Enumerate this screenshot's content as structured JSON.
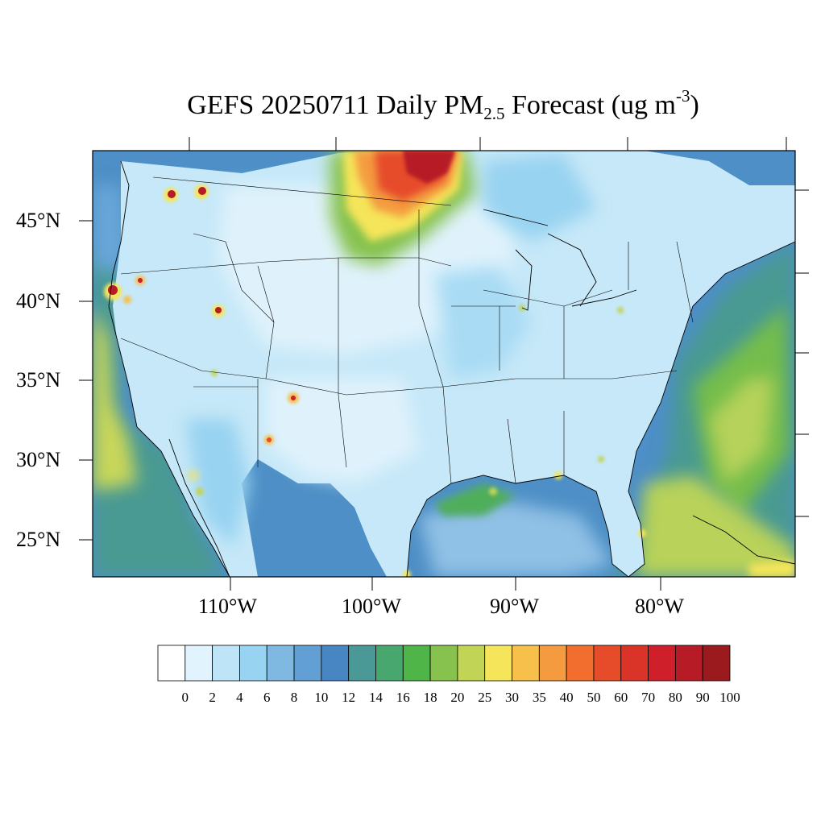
{
  "title": {
    "prefix": "GEFS 20250711 Daily PM",
    "subscript": "2.5",
    "middle": " Forecast (ug m",
    "superscript": "-3",
    "suffix": ")"
  },
  "lat_labels": [
    "45°N",
    "40°N",
    "35°N",
    "30°N",
    "25°N"
  ],
  "lon_labels": [
    "110°W",
    "100°W",
    "90°W",
    "80°W"
  ],
  "colorbar": {
    "labels": [
      "0",
      "2",
      "4",
      "6",
      "8",
      "10",
      "12",
      "14",
      "16",
      "18",
      "20",
      "25",
      "30",
      "35",
      "40",
      "50",
      "60",
      "70",
      "80",
      "90",
      "100"
    ],
    "colors": [
      "#ffffff",
      "#e1f3fc",
      "#bde5f7",
      "#98d3f1",
      "#7fb8e1",
      "#629fd4",
      "#4786c3",
      "#4a9997",
      "#48a66f",
      "#4fb549",
      "#86c24d",
      "#c1d456",
      "#f5e55a",
      "#f6c04b",
      "#f49b40",
      "#f16e2e",
      "#e64c2a",
      "#da3428",
      "#ce1f2b",
      "#b71b25",
      "#9b1a1e"
    ]
  },
  "colors": {
    "land_base": "#c6e8f8",
    "ocean_base": "#4d8fc6",
    "plume_core": "#a9191f"
  }
}
